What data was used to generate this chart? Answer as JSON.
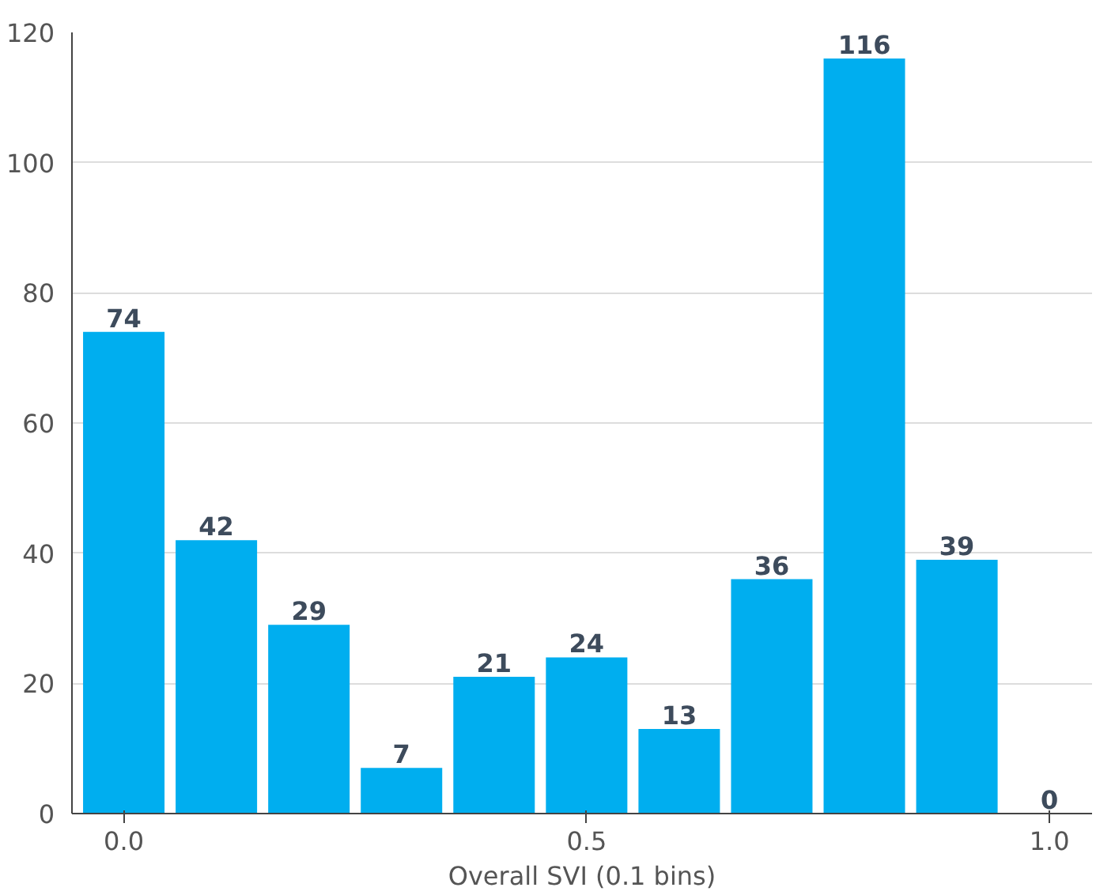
{
  "chart_data": {
    "type": "bar",
    "xlabel": "Overall SVI (0.1 bins)",
    "x": [
      0.0,
      0.1,
      0.2,
      0.3,
      0.4,
      0.5,
      0.6,
      0.7,
      0.8,
      0.9,
      1.0
    ],
    "values": [
      74,
      42,
      29,
      7,
      21,
      24,
      13,
      36,
      116,
      39,
      0
    ],
    "color": "#00aeef",
    "xlim": [
      -0.056,
      1.046
    ],
    "xticks": [
      {
        "value": 0.0,
        "label": "0.0"
      },
      {
        "value": 0.5,
        "label": "0.5"
      },
      {
        "value": 1.0,
        "label": "1.0"
      }
    ],
    "ylim": [
      0,
      120
    ],
    "yticks": [
      0,
      20,
      40,
      60,
      80,
      100,
      120
    ],
    "grid": "y",
    "data_labels": true
  }
}
